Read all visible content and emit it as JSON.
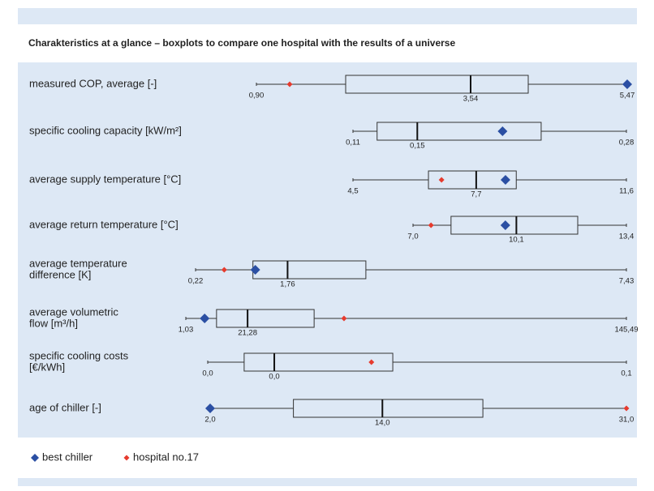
{
  "chart_data": {
    "type": "boxplot",
    "title": "Charakteristics at a glance – boxplots to compare one hospital with the results of a universe",
    "series": [
      {
        "name": "best chiller",
        "color": "#2b4fa3"
      },
      {
        "name": "hospital no.17",
        "color": "#e63b2e"
      }
    ],
    "rows": [
      {
        "label": [
          "measured COP, average [-]"
        ],
        "min": {
          "value": 0.9,
          "label": "0,90"
        },
        "q1": 2.0,
        "median": {
          "value": 3.54,
          "label": "3,54"
        },
        "q3": 4.25,
        "max": {
          "value": 5.47,
          "label": "5,47"
        },
        "best": 5.47,
        "hospital": 1.31
      },
      {
        "label": [
          "specific cooling capacity [kW/m²]"
        ],
        "min": {
          "value": 0.11,
          "label": "0,11"
        },
        "q1": 0.125,
        "median": {
          "value": 0.15,
          "label": "0,15"
        },
        "q3": 0.227,
        "max": {
          "value": 0.28,
          "label": "0,28"
        },
        "best": 0.203,
        "hospital": null
      },
      {
        "label": [
          "average supply temperature [°C]"
        ],
        "min": {
          "value": 4.5,
          "label": "4,5"
        },
        "q1": 6.46,
        "median": {
          "value": 7.7,
          "label": "7,7"
        },
        "q3": 8.74,
        "max": {
          "value": 11.6,
          "label": "11,6"
        },
        "best": 8.46,
        "hospital": 6.8
      },
      {
        "label": [
          "average return temperature [°C]"
        ],
        "min": {
          "value": 7.0,
          "label": "7,0"
        },
        "q1": 8.14,
        "median": {
          "value": 10.1,
          "label": "10,1"
        },
        "q3": 11.94,
        "max": {
          "value": 13.4,
          "label": "13,4"
        },
        "best": 9.77,
        "hospital": 7.54
      },
      {
        "label": [
          "average temperature",
          "difference [K]"
        ],
        "min": {
          "value": 0.22,
          "label": "0,22"
        },
        "q1": 1.18,
        "median": {
          "value": 1.76,
          "label": "1,76"
        },
        "q3": 3.07,
        "max": {
          "value": 7.43,
          "label": "7,43"
        },
        "best": 1.22,
        "hospital": 0.7
      },
      {
        "label": [
          "average volumetric",
          "flow [m³/h]"
        ],
        "min": {
          "value": 1.03,
          "label": "1,03"
        },
        "q1": 11.1,
        "median": {
          "value": 21.28,
          "label": "21,28"
        },
        "q3": 43.1,
        "max": {
          "value": 145.49,
          "label": "145,49"
        },
        "best": 7.2,
        "hospital": 52.9
      },
      {
        "label": [
          "specific cooling costs",
          "[€/kWh]"
        ],
        "min": {
          "value": 0.0,
          "label": "0,0"
        },
        "q1": 0.0087,
        "median": {
          "value": 0.0159,
          "label": "0,0"
        },
        "q3": 0.0442,
        "max": {
          "value": 0.1,
          "label": "0,1"
        },
        "best": null,
        "hospital": 0.0391
      },
      {
        "label": [
          "age of chiller [-]"
        ],
        "min": {
          "value": 2.0,
          "label": "2,0"
        },
        "q1": 7.8,
        "median": {
          "value": 14.0,
          "label": "14,0"
        },
        "q3": 21.0,
        "max": {
          "value": 31.0,
          "label": "31,0"
        },
        "best": 2.0,
        "hospital": 31.0
      }
    ]
  }
}
